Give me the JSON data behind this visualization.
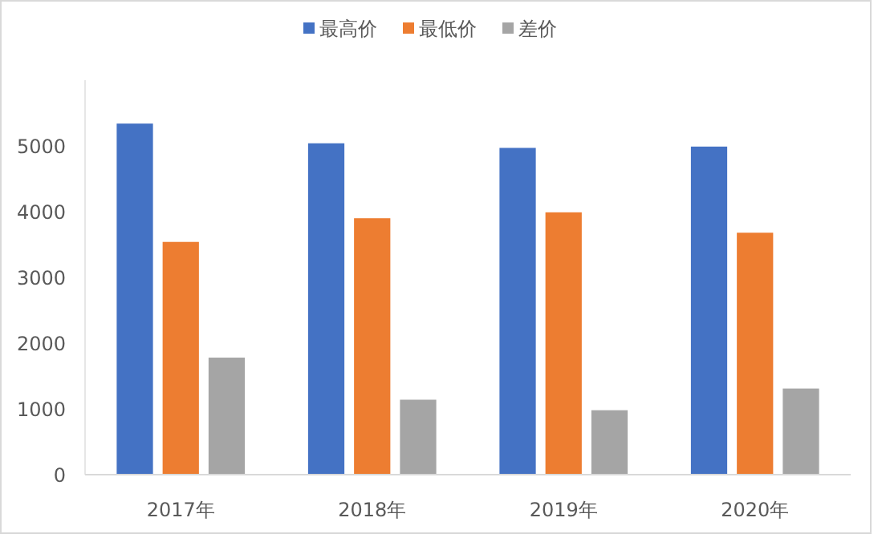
{
  "chart_data": {
    "type": "bar",
    "categories": [
      "2017年",
      "2018年",
      "2019年",
      "2020年"
    ],
    "series": [
      {
        "name": "最高价",
        "color": "#4472c4",
        "values": [
          5340,
          5040,
          4970,
          4990
        ]
      },
      {
        "name": "最低价",
        "color": "#ed7d31",
        "values": [
          3540,
          3900,
          3990,
          3680
        ]
      },
      {
        "name": "差价",
        "color": "#a5a5a5",
        "values": [
          1780,
          1140,
          980,
          1310
        ]
      }
    ],
    "ylim": [
      0,
      6000
    ],
    "yticks": [
      0,
      1000,
      2000,
      3000,
      4000,
      5000
    ],
    "grid": false,
    "legend": "top"
  }
}
